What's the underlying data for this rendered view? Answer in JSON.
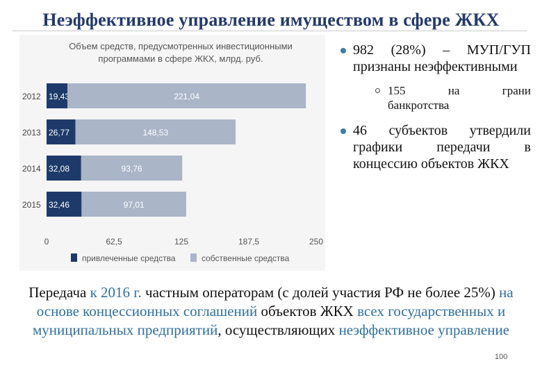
{
  "title": "Неэффективное управление имуществом в сфере ЖКХ",
  "chart_data": {
    "type": "bar",
    "orientation": "horizontal",
    "stacked": true,
    "title_lines": [
      "Объем средств, предусмотренных инвестиционными",
      "программами в сфере ЖКХ, млрд. руб."
    ],
    "categories": [
      "2012",
      "2013",
      "2014",
      "2015"
    ],
    "series": [
      {
        "name": "привлеченные средства",
        "values": [
          19.43,
          26.77,
          32.08,
          32.46
        ],
        "labels": [
          "19,43",
          "26,77",
          "32,08",
          "32,46"
        ],
        "color": "#1e3a6a"
      },
      {
        "name": "собственные средства",
        "values": [
          221.04,
          148.53,
          93.76,
          97.01
        ],
        "labels": [
          "221,04",
          "148,53",
          "93,76",
          "97,01"
        ],
        "color": "#aab5c8"
      }
    ],
    "xlim": [
      0,
      250
    ],
    "ticks": [
      0,
      62.5,
      125,
      187.5,
      250
    ],
    "tick_labels": [
      "0",
      "62,5",
      "125",
      "187,5",
      "250"
    ],
    "grid": false,
    "legend_position": "bottom"
  },
  "bullets": {
    "b1": "982 (28%) – МУП/ГУП признаны неэффективными",
    "sub_a": "155",
    "sub_b": "на",
    "sub_c": "грани",
    "sub_d": "банкротства",
    "b2": "46 субъектов утвердили графики передачи в концессию объектов ЖКХ"
  },
  "bottom": {
    "p1": "Передача ",
    "p2": "к 2016 г.",
    "p3": " частным операторам (с долей участия РФ не более 25%) ",
    "p4": "на основе концессионных соглашений",
    "p5": " объектов ЖКХ ",
    "p6": "всех государственных и муниципальных предприятий",
    "p7": ", осуществляющих ",
    "p8": "неэффективное управление"
  },
  "page_number": "100",
  "colors": {
    "title": "#243a6b",
    "accent": "#2e6fa0",
    "bar_dark": "#1e3a6a",
    "bar_light": "#aab5c8"
  }
}
